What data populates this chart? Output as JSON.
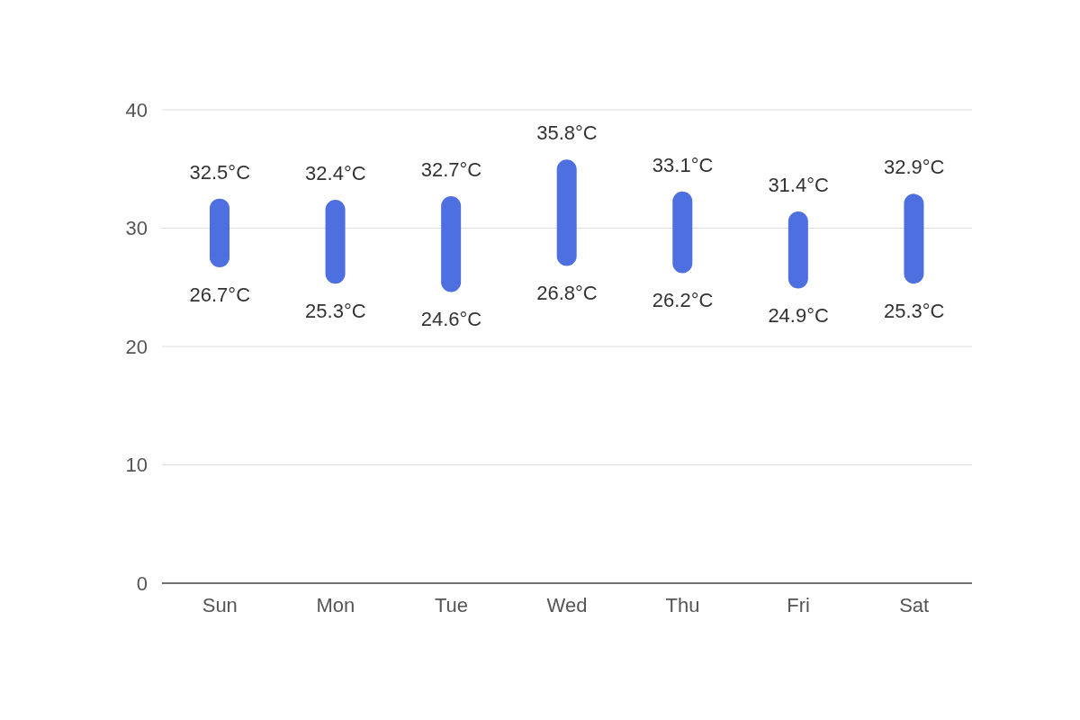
{
  "chart_data": {
    "type": "bar",
    "categories": [
      "Sun",
      "Mon",
      "Tue",
      "Wed",
      "Thu",
      "Fri",
      "Sat"
    ],
    "base": [
      26.7,
      25.3,
      24.6,
      26.8,
      26.2,
      24.9,
      25.3
    ],
    "values": [
      5.8,
      7.1,
      8.1,
      9.0,
      6.9,
      6.5,
      7.6
    ],
    "color": "#4e6fdf",
    "ylim": [
      0,
      40
    ],
    "yticks": [
      0,
      10,
      20,
      30,
      40
    ],
    "grid": "y",
    "annotations": [
      {
        "text": "32.5°C",
        "x": "Sun",
        "y": 32.5
      },
      {
        "text": "26.7°C",
        "x": "Sun",
        "y": 26.7
      },
      {
        "text": "32.4°C",
        "x": "Mon",
        "y": 32.4
      },
      {
        "text": "25.3°C",
        "x": "Mon",
        "y": 25.3
      },
      {
        "text": "32.7°C",
        "x": "Tue",
        "y": 32.7
      },
      {
        "text": "24.6°C",
        "x": "Tue",
        "y": 24.6
      },
      {
        "text": "35.8°C",
        "x": "Wed",
        "y": 35.8
      },
      {
        "text": "26.8°C",
        "x": "Wed",
        "y": 26.8
      },
      {
        "text": "33.1°C",
        "x": "Thu",
        "y": 33.1
      },
      {
        "text": "26.2°C",
        "x": "Thu",
        "y": 26.2
      },
      {
        "text": "31.4°C",
        "x": "Fri",
        "y": 31.4
      },
      {
        "text": "24.9°C",
        "x": "Fri",
        "y": 24.9
      },
      {
        "text": "32.9°C",
        "x": "Sat",
        "y": 32.9
      },
      {
        "text": "25.3°C",
        "x": "Sat",
        "y": 25.3
      }
    ]
  }
}
